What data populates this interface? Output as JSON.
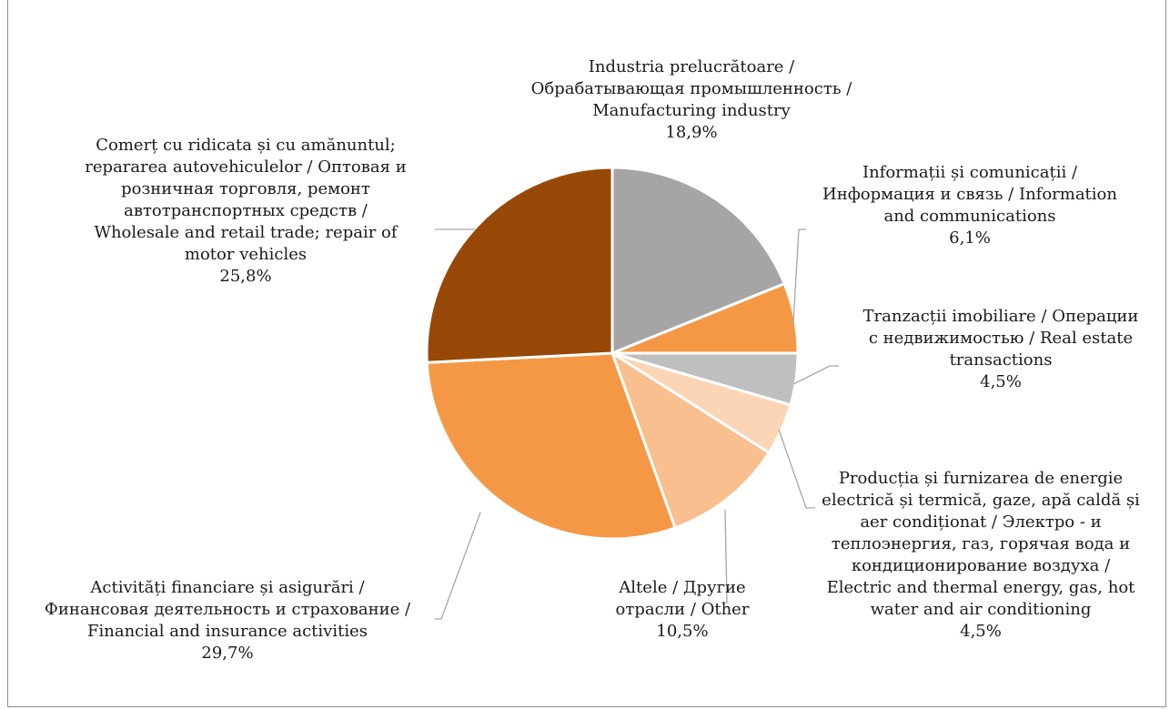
{
  "chart_data": {
    "type": "pie",
    "title": "",
    "slices": [
      {
        "name": "Industria prelucrătoare / Обрабатывающая промышленность / Manufacturing industry",
        "value": 18.9,
        "label": "18,9%",
        "color": "#a5a5a5"
      },
      {
        "name": "Informații și comunicații / Информация и связь / Information and communications",
        "value": 6.1,
        "label": "6,1%",
        "color": "#f59846"
      },
      {
        "name": "Tranzacții imobiliare / Операции с недвижимостью / Real estate transactions",
        "value": 4.5,
        "label": "4,5%",
        "color": "#bfbfbf"
      },
      {
        "name": "Producția și furnizarea de energie electrică și termică, gaze, apă caldă și aer condiționat / Электро - и теплоэнергия, газ, горячая вода и кондиционирование воздуха / Electric and thermal energy, gas, hot water and air conditioning",
        "value": 4.5,
        "label": "4,5%",
        "color": "#fbd5b5"
      },
      {
        "name": "Altele / Другие отрасли / Other",
        "value": 10.5,
        "label": "10,5%",
        "color": "#f9bf8f"
      },
      {
        "name": "Activități financiare și asigurări / Финансовая деятельность и страхование / Financial and insurance activities",
        "value": 29.7,
        "label": "29,7%",
        "color": "#f59846"
      },
      {
        "name": "Comerț cu ridicata și cu amănuntul; repararea autovehiculelor / Оптовая и розничная торговля, ремонт автотранспортных средств / Wholesale and retail trade; repair of motor vehicles",
        "value": 25.8,
        "label": "25,8%",
        "color": "#974806"
      }
    ]
  },
  "labels": {
    "manufacturing": {
      "lines": [
        "Industria prelucrătoare /",
        "Обрабатывающая промышленность /",
        "Manufacturing industry"
      ],
      "pct": "18,9%"
    },
    "ict": {
      "lines": [
        "Informații și comunicații /",
        "Информация и связь / Information",
        "and communications"
      ],
      "pct": "6,1%"
    },
    "realestate": {
      "lines": [
        "Tranzacții imobiliare / Операции",
        "с недвижимостью / Real estate",
        "transactions"
      ],
      "pct": "4,5%"
    },
    "energy": {
      "lines": [
        "Producția și furnizarea de energie",
        "electrică și termică, gaze, apă caldă și",
        "aer condiționat / Электро - и",
        "теплоэнергия, газ, горячая вода и",
        "кондиционирование воздуха /",
        "Electric and thermal energy, gas, hot",
        "water and air conditioning"
      ],
      "pct": "4,5%"
    },
    "other": {
      "lines": [
        "Altele / Другие",
        "отрасли / Other"
      ],
      "pct": "10,5%"
    },
    "finance": {
      "lines": [
        "Activități financiare și asigurări  /",
        "Финансовая деятельность и страхование /",
        "Financial and insurance activities"
      ],
      "pct": "29,7%"
    },
    "trade": {
      "lines": [
        "Comerț cu ridicata și cu amănuntul;",
        "repararea autovehiculelor / Оптовая и",
        "розничная торговля,  ремонт",
        "автотранспортных средств /",
        "Wholesale and retail trade; repair of",
        "motor vehicles"
      ],
      "pct": "25,8%"
    }
  }
}
